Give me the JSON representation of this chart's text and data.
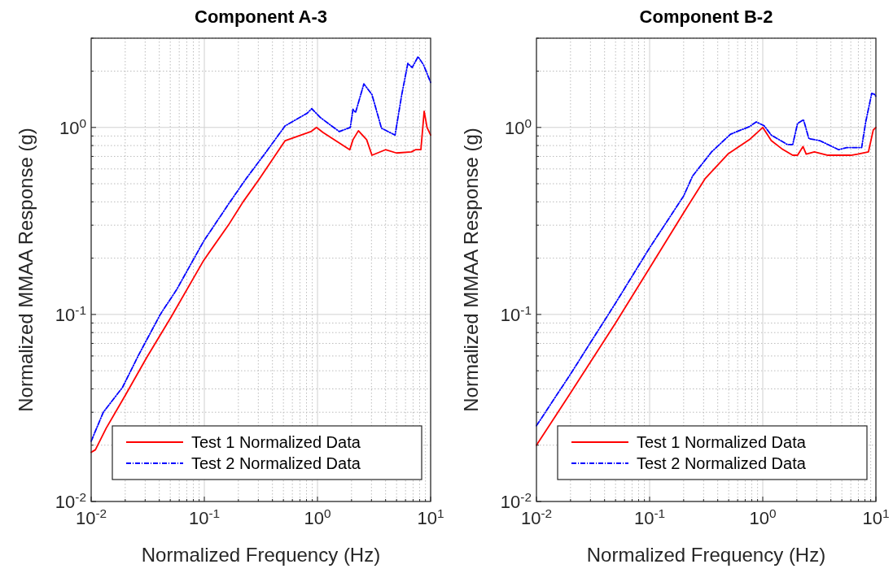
{
  "chart_data": [
    {
      "type": "line",
      "title": "Component A-3",
      "xlabel": "Normalized Frequency (Hz)",
      "ylabel": "Normalized MMAA Response (g)",
      "log": "xy",
      "grid": true,
      "legend": "bottom",
      "xlim": [
        0.01,
        10
      ],
      "ylim": [
        0.01,
        3
      ],
      "xticks": [
        {
          "value": 0.01,
          "label": "10$^{-2}$"
        },
        {
          "value": 0.1,
          "label": "10$^{-1}$"
        },
        {
          "value": 1,
          "label": "10$^{0}$"
        },
        {
          "value": 10,
          "label": "10$^{1}$"
        }
      ],
      "yticks": [
        {
          "value": 0.01,
          "label": "10$^{-2}$"
        },
        {
          "value": 0.1,
          "label": "10$^{-1}$"
        },
        {
          "value": 1,
          "label": "10$^{0}$"
        }
      ],
      "series": [
        {
          "name": "Test 1 Normalized Data",
          "color": "#ff0000",
          "line_style": "solid",
          "x": [
            0.01,
            0.0109,
            0.0136,
            0.02,
            0.031,
            0.0509,
            0.0989,
            0.163,
            0.22,
            0.306,
            0.518,
            0.875,
            0.98,
            1.12,
            1.93,
            2.06,
            2.3,
            2.72,
            3.03,
            3.99,
            4.99,
            6.76,
            7.34,
            8.2,
            8.77,
            9.3,
            10
          ],
          "values": [
            0.0183,
            0.0189,
            0.0247,
            0.0369,
            0.0589,
            0.097,
            0.195,
            0.3,
            0.4,
            0.53,
            0.85,
            0.95,
            1.0,
            0.94,
            0.76,
            0.86,
            0.96,
            0.86,
            0.71,
            0.76,
            0.73,
            0.74,
            0.76,
            0.76,
            1.22,
            1.0,
            0.91
          ]
        },
        {
          "name": "Test 2 Normalized Data",
          "color": "#0000ff",
          "line_style": "dashed",
          "x": [
            0.01,
            0.0128,
            0.0189,
            0.0263,
            0.0408,
            0.0568,
            0.0989,
            0.163,
            0.233,
            0.352,
            0.518,
            0.81,
            0.89,
            1.06,
            1.56,
            1.95,
            2.06,
            2.17,
            2.57,
            3.03,
            3.68,
            4.85,
            5.56,
            6.29,
            6.87,
            7.75,
            8.66,
            10
          ],
          "values": [
            0.021,
            0.03,
            0.0407,
            0.0608,
            0.1,
            0.1355,
            0.247,
            0.388,
            0.53,
            0.74,
            1.02,
            1.19,
            1.26,
            1.13,
            0.95,
            1.0,
            1.25,
            1.2,
            1.71,
            1.5,
            0.99,
            0.91,
            1.5,
            2.2,
            2.09,
            2.39,
            2.16,
            1.74
          ]
        }
      ]
    },
    {
      "type": "line",
      "title": "Component B-2",
      "xlabel": "Normalized Frequency (Hz)",
      "ylabel": "Normalized MMAA Response (g)",
      "log": "xy",
      "grid": true,
      "legend": "bottom",
      "xlim": [
        0.01,
        10
      ],
      "ylim": [
        0.01,
        3
      ],
      "xticks": [
        {
          "value": 0.01,
          "label": "10$^{-2}$"
        },
        {
          "value": 0.1,
          "label": "10$^{-1}$"
        },
        {
          "value": 1,
          "label": "10$^{0}$"
        },
        {
          "value": 10,
          "label": "10$^{1}$"
        }
      ],
      "yticks": [
        {
          "value": 0.01,
          "label": "10$^{-2}$"
        },
        {
          "value": 0.1,
          "label": "10$^{-1}$"
        },
        {
          "value": 1,
          "label": "10$^{0}$"
        }
      ],
      "series": [
        {
          "name": "Test 1 Normalized Data",
          "color": "#ff0000",
          "line_style": "solid",
          "x": [
            0.01,
            0.02,
            0.05,
            0.1,
            0.2,
            0.308,
            0.492,
            0.762,
            1.0,
            1.19,
            1.47,
            1.84,
            2.03,
            2.27,
            2.42,
            2.86,
            3.77,
            6.01,
            6.9,
            8.59,
            9.48,
            10
          ],
          "values": [
            0.02,
            0.038,
            0.09,
            0.177,
            0.35,
            0.53,
            0.72,
            0.86,
            1.0,
            0.85,
            0.77,
            0.71,
            0.71,
            0.79,
            0.72,
            0.74,
            0.71,
            0.71,
            0.72,
            0.74,
            0.97,
            1.0
          ]
        },
        {
          "name": "Test 2 Normalized Data",
          "color": "#0000ff",
          "line_style": "dashed",
          "x": [
            0.01,
            0.02,
            0.05,
            0.1,
            0.2,
            0.24,
            0.353,
            0.519,
            0.762,
            0.877,
            1.03,
            1.19,
            1.65,
            1.84,
            2.03,
            2.29,
            2.56,
            3.19,
            4.69,
            5.53,
            7.48,
            8.13,
            9.18,
            9.86,
            10
          ],
          "values": [
            0.0254,
            0.048,
            0.115,
            0.227,
            0.43,
            0.55,
            0.74,
            0.92,
            1.01,
            1.07,
            1.02,
            0.91,
            0.81,
            0.81,
            1.05,
            1.1,
            0.87,
            0.85,
            0.76,
            0.78,
            0.78,
            1.07,
            1.52,
            1.5,
            1.45
          ]
        }
      ]
    }
  ]
}
